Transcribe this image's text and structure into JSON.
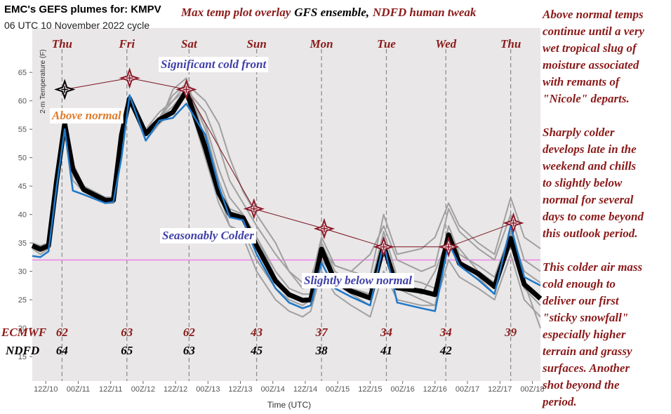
{
  "chart_data": {
    "type": "line",
    "header": {
      "site_title": "EMC's GEFS plumes for: KMPV",
      "cycle": "06 UTC 10 November 2022 cycle"
    },
    "title_parts": [
      {
        "text": "Max temp plot overlay",
        "color": "#8b1a1a"
      },
      {
        "text": "GFS ensemble,",
        "color": "#000000"
      },
      {
        "text": "NDFD human tweak",
        "color": "#8b1a1a"
      }
    ],
    "y_label": "2-m Temperature (F)",
    "x_label": "Time (UTC)",
    "xlim": [
      -5,
      183
    ],
    "ylim": [
      10.7,
      72.8
    ],
    "yticks": [
      15,
      20,
      25,
      30,
      35,
      40,
      45,
      50,
      55,
      60,
      65
    ],
    "xticks": [
      {
        "value": 0,
        "label": "12Z/10"
      },
      {
        "value": 12,
        "label": "00Z/11"
      },
      {
        "value": 24,
        "label": "12Z/11"
      },
      {
        "value": 36,
        "label": "00Z/12"
      },
      {
        "value": 48,
        "label": "12Z/12"
      },
      {
        "value": 60,
        "label": "00Z/13"
      },
      {
        "value": 72,
        "label": "12Z/13"
      },
      {
        "value": 84,
        "label": "00Z/14"
      },
      {
        "value": 96,
        "label": "12Z/14"
      },
      {
        "value": 108,
        "label": "00Z/15"
      },
      {
        "value": 120,
        "label": "12Z/15"
      },
      {
        "value": 132,
        "label": "00Z/16"
      },
      {
        "value": 144,
        "label": "12Z/16"
      },
      {
        "value": 156,
        "label": "00Z/17"
      },
      {
        "value": 168,
        "label": "12Z/17"
      },
      {
        "value": 180,
        "label": "00Z/18"
      }
    ],
    "day_ticks": [
      {
        "value": 6,
        "label": "Thu"
      },
      {
        "value": 30,
        "label": "Fri"
      },
      {
        "value": 53,
        "label": "Sat"
      },
      {
        "value": 78,
        "label": "Sun"
      },
      {
        "value": 102,
        "label": "Mon"
      },
      {
        "value": 126,
        "label": "Tue"
      },
      {
        "value": 148,
        "label": "Wed"
      },
      {
        "value": 172,
        "label": "Thu"
      }
    ],
    "freezing_line": {
      "value": 32,
      "color": "#ee82ee"
    },
    "x": [
      -5,
      -2,
      1,
      4,
      7,
      10,
      14,
      22,
      25,
      28,
      31,
      37,
      42,
      47,
      52,
      59,
      64,
      68,
      73,
      78,
      85,
      90,
      95,
      98,
      102,
      107,
      113,
      120,
      125,
      130,
      139,
      144,
      149,
      153,
      160,
      166,
      172,
      177,
      183
    ],
    "series": [
      {
        "color": "#a0a0a0",
        "width": 2,
        "values": [
          34,
          33.5,
          34,
          47,
          57,
          46,
          44,
          43,
          43,
          55,
          61,
          55,
          58,
          60,
          63,
          55,
          46,
          41,
          40,
          36,
          30,
          27,
          26,
          26,
          35,
          30,
          28,
          27,
          37,
          29,
          28,
          27,
          38,
          33,
          31,
          29,
          37,
          30,
          28
        ]
      },
      {
        "color": "#a0a0a0",
        "width": 2,
        "values": [
          35,
          34.5,
          35,
          46,
          56,
          48,
          45,
          43,
          43,
          53,
          60,
          54,
          57,
          59,
          62,
          58,
          52,
          46,
          42,
          38,
          33,
          30,
          28,
          29,
          34,
          31,
          30,
          29,
          40,
          33,
          34,
          36,
          42,
          38,
          35,
          33,
          43,
          36,
          34
        ]
      },
      {
        "color": "#a0a0a0",
        "width": 2,
        "values": [
          34,
          33,
          34,
          45,
          55,
          47,
          44,
          42,
          42,
          54,
          60,
          53,
          56,
          62,
          64,
          53,
          44,
          38,
          36,
          30,
          25,
          23,
          22,
          23,
          30,
          26,
          24,
          22,
          30,
          25,
          24,
          24,
          32,
          29,
          27,
          25,
          33,
          25,
          22
        ]
      },
      {
        "color": "#a0a0a0",
        "width": 2,
        "values": [
          35,
          34,
          35,
          46,
          56,
          48,
          45,
          43,
          43,
          54,
          61,
          55,
          57,
          61,
          63,
          60,
          56,
          50,
          44,
          40,
          35,
          30,
          27,
          28,
          36,
          31,
          30,
          33,
          38,
          32,
          30,
          31,
          41,
          37,
          34,
          32,
          40,
          32,
          30
        ]
      },
      {
        "color": "#a0a0a0",
        "width": 2,
        "values": [
          34,
          34,
          34,
          46,
          56,
          48,
          44,
          42,
          42,
          53,
          60,
          54,
          56,
          58,
          61,
          50,
          42,
          38,
          37,
          32,
          27,
          25,
          24,
          25,
          32,
          29,
          27,
          26,
          34,
          28,
          26,
          30,
          36,
          34,
          30,
          28,
          36,
          27,
          24
        ]
      },
      {
        "color": "#a0a0a0",
        "width": 2,
        "values": [
          35,
          34,
          35,
          46,
          57,
          49,
          45,
          43,
          43,
          54,
          61,
          54,
          57,
          60,
          62,
          56,
          48,
          43,
          40,
          36,
          29,
          26,
          25,
          25,
          33,
          28,
          26,
          24,
          36,
          27,
          25,
          24,
          36,
          32,
          29,
          26,
          37,
          28,
          20
        ]
      },
      {
        "color": "#000000",
        "width": 7,
        "values": [
          34.5,
          33.9,
          34.5,
          46,
          56,
          48,
          44.4,
          42.5,
          42.5,
          54,
          60.4,
          54.2,
          56.7,
          58,
          61.7,
          51.8,
          43.8,
          40.1,
          39.4,
          34.5,
          28.3,
          25.9,
          24.9,
          25,
          33.9,
          28.3,
          26.5,
          25.3,
          34.5,
          27.1,
          26.5,
          25.9,
          36.4,
          31.4,
          29.6,
          27.3,
          35.8,
          27.7,
          25.2
        ]
      },
      {
        "color": "#1f78c8",
        "width": 2.5,
        "values": [
          32.7,
          32.5,
          33.5,
          45,
          55,
          44.2,
          43.5,
          42,
          42.2,
          50,
          61,
          53,
          56.5,
          57,
          59.5,
          54,
          45,
          39.5,
          39,
          33,
          27,
          24.5,
          23.5,
          24,
          31.5,
          27,
          25.5,
          24,
          35,
          24.5,
          23.5,
          23,
          35,
          31,
          28.5,
          26,
          38,
          29,
          27.5
        ]
      }
    ],
    "overlay": {
      "line_color": "#7a0f1f",
      "x": [
        7,
        31,
        52,
        77,
        103,
        125,
        149,
        173
      ],
      "values": [
        62,
        64,
        62,
        41,
        37.5,
        34.3,
        34.3,
        38.5
      ],
      "marker_colors": [
        "#000000",
        "#8b1a2a",
        "#8b1a2a",
        "#8b1a2a",
        "#8b1a2a",
        "#8b1a2a",
        "#8b1a2a",
        "#8b1a2a"
      ]
    },
    "annotations": [
      {
        "text": "Significant cold front",
        "color": "#3f3fa8"
      },
      {
        "text": "Above normal",
        "color": "#e07b2a"
      },
      {
        "text": "Seasonably Colder",
        "color": "#3f3fa8"
      },
      {
        "text": "Slightly below normal",
        "color": "#3f3fa8"
      }
    ],
    "table": [
      {
        "label": "ECMWF",
        "color": "#8b1a1a",
        "values": [
          62,
          63,
          62,
          43,
          37,
          34,
          34,
          39
        ]
      },
      {
        "label": "NDFD",
        "color": "#000000",
        "values": [
          64,
          65,
          63,
          45,
          38,
          41,
          42
        ]
      }
    ],
    "discussion": [
      [
        "Above normal temps",
        "continue until a very",
        "wet tropical slug of",
        "moisture associated",
        "with remants of",
        "\"Nicole\" departs."
      ],
      [
        "Sharply colder",
        "develops late in the",
        "weekend and chills",
        "to slightly below",
        "normal for several",
        "days to come beyond",
        "this outlook period."
      ],
      [
        "This colder air mass",
        "cold enough to",
        "deliver our first",
        "\"sticky snowfall\"",
        "especially higher",
        "terrain and grassy",
        "surfaces. Another",
        "shot beyond the",
        "period."
      ]
    ]
  }
}
